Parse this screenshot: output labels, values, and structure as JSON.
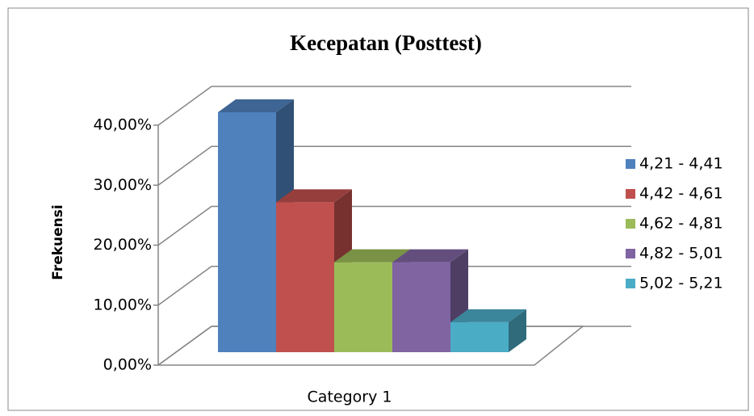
{
  "chart_data": {
    "type": "bar3d",
    "title": "Kecepatan (Posttest)",
    "y_label": "Frekuensi",
    "categories": [
      "Category 1"
    ],
    "series": [
      {
        "name": "4,21 - 4,41",
        "color": "#4f81bd",
        "values": [
          40
        ]
      },
      {
        "name": "4,42 - 4,61",
        "color": "#c0504d",
        "values": [
          25
        ]
      },
      {
        "name": "4,62 - 4,81",
        "color": "#9bbb59",
        "values": [
          15
        ]
      },
      {
        "name": "4,82 - 5,01",
        "color": "#8064a2",
        "values": [
          15
        ]
      },
      {
        "name": "5,02 - 5,21",
        "color": "#4bacc6",
        "values": [
          5
        ]
      }
    ],
    "ylim": [
      0,
      40
    ],
    "yticks": [
      {
        "value": 0,
        "label": "0,00%"
      },
      {
        "value": 10,
        "label": "10,00%"
      },
      {
        "value": 20,
        "label": "20,00%"
      },
      {
        "value": 30,
        "label": "30,00%"
      },
      {
        "value": 40,
        "label": "40,00%"
      }
    ],
    "grid": true,
    "legend": "right"
  }
}
